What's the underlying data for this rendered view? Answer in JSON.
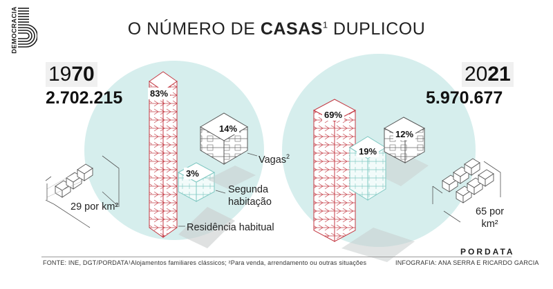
{
  "brand_vertical": "DEMOCRACIA",
  "title": {
    "prefix": "O NÚMERO DE ",
    "bold": "CASAS",
    "sup": "1",
    "suffix": " DUPLICOU"
  },
  "left": {
    "year_light": "19",
    "year_bold": "70",
    "total": "2.702.215",
    "pct_main": "83%",
    "pct_vacant": "14%",
    "pct_second": "3%",
    "density": "29 por km²"
  },
  "right": {
    "year_light": "20",
    "year_bold": "21",
    "total": "5.970.677",
    "pct_main": "69%",
    "pct_second": "19%",
    "pct_vacant": "12%",
    "density_line1": "65 por",
    "density_line2": "km²"
  },
  "labels": {
    "vacant": "Vagas",
    "vacant_sup": "2",
    "second_line1": "Segunda",
    "second_line2": "habitação",
    "main": "Residência habitual"
  },
  "footer": {
    "source": "FONTE:  INE, DGT/PORDATA",
    "notes": "¹Alojamentos familiares clássicos; ²Para venda, arrendamento ou outras situações",
    "credits": "INFOGRAFIA: ANA SERRA E RICARDO GARCIA",
    "logo": "PORDATA"
  },
  "colors": {
    "teal": "#d6eeed",
    "red": "#c43a44",
    "grey": "#555555"
  }
}
